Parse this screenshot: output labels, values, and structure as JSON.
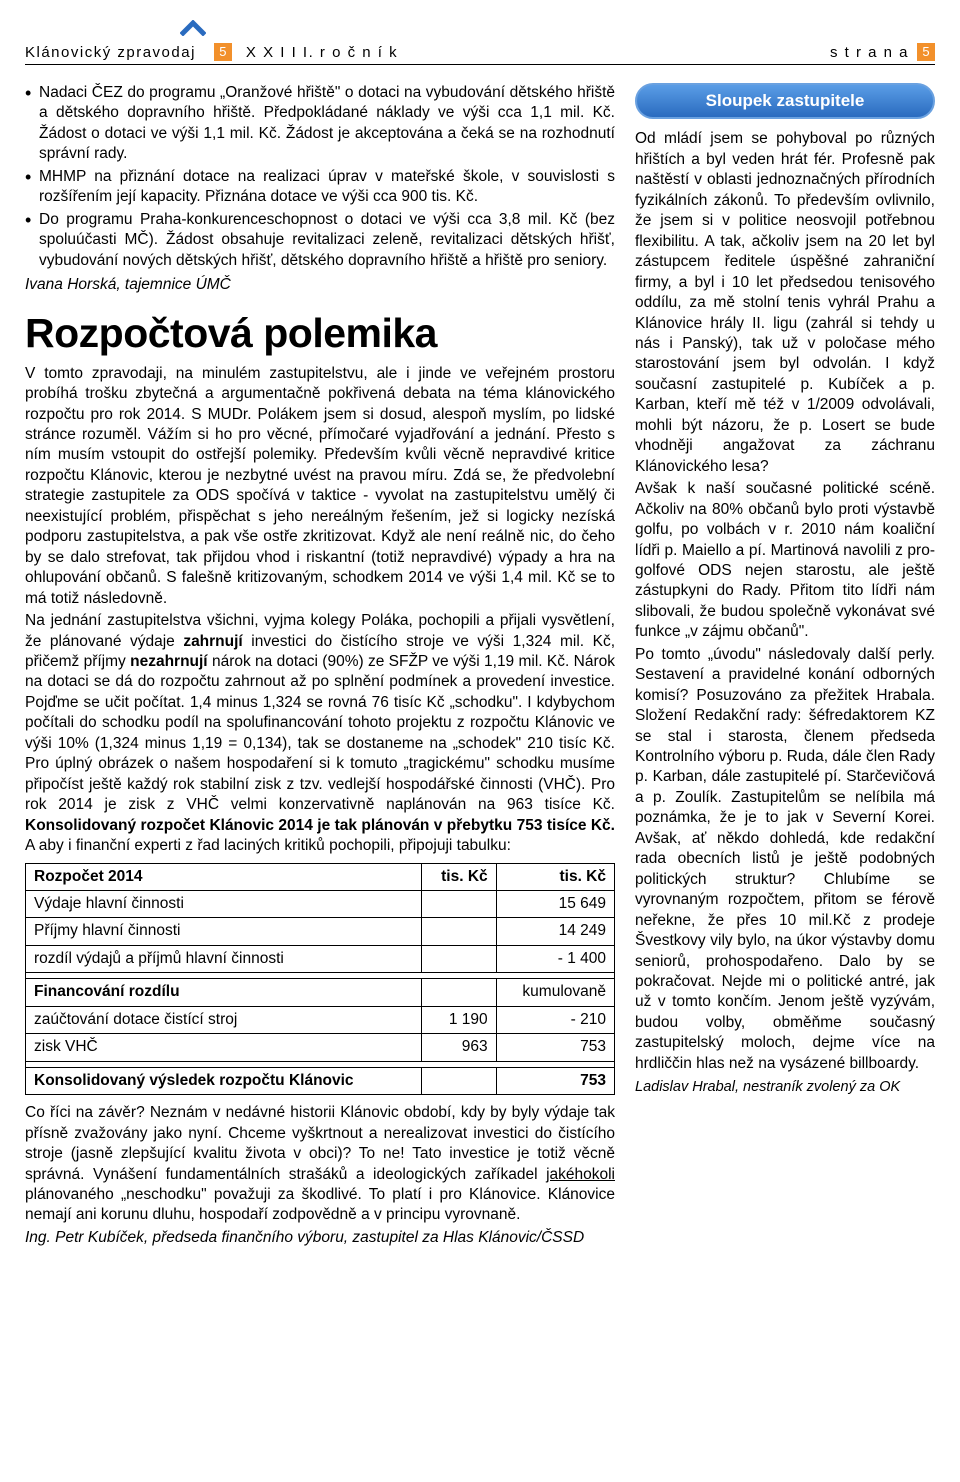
{
  "header": {
    "chevron_color": "#2a6bbf",
    "title": "Klánovický zpravodaj",
    "box_value": "5",
    "box_color": "#f2902b",
    "volume": "X X I I I.  r o č n í k",
    "strana_label": "s t r a n a",
    "page_value": "5",
    "page_box_color": "#f2902b"
  },
  "left": {
    "bullets": [
      "Nadaci ČEZ do programu „Oranžové hřiště\" o dotaci na vybudování dětského hřiště a dětského dopravního hřiště. Předpokládané náklady ve výši cca 1,1 mil. Kč. Žádost o dotaci ve výši 1,1 mil. Kč. Žádost je akceptována a čeká se na rozhodnutí správní rady.",
      "MHMP na přiznání dotace na realizaci úprav v mateřské škole, v souvislosti s rozšířením její kapacity. Přiznána dotace ve výši cca 900 tis. Kč.",
      "Do programu Praha-konkurenceschopnost o dotaci ve výši cca 3,8 mil. Kč (bez spoluúčasti MČ). Žádost obsahuje revitalizaci zeleně, revitalizaci dětských hřišť, vybudování nových dětských hřišť, dětského dopravního hřiště a hřiště pro seniory."
    ],
    "signature1": "Ivana Horská, tajemnice ÚMČ",
    "heading": "Rozpočtová polemika",
    "para1": "V tomto zpravodaji, na minulém zastupitelstvu, ale i jinde ve veřejném prostoru probíhá trošku zbytečná a argumentačně pokřivená debata na téma klánovického rozpočtu pro rok 2014. S MUDr. Polákem jsem si dosud, alespoň myslím, po lidské stránce rozuměl. Vážím si ho pro věcné, přímočaré vyjadřování a jednání. Přesto s ním musím vstoupit do ostřejší polemiky. Především kvůli věcně nepravdivé kritice rozpočtu Klánovic, kterou je nezbytné uvést na pravou míru. Zdá se, že předvolební strategie zastupitele za ODS spočívá v taktice - vyvolat na zastupitelstvu umělý či neexistující problém, přispěchat s jeho nereálným řešením, jež si logicky nezíská podporu zastupitelstva, a pak vše ostře zkritizovat. Když ale není reálně nic, do čeho by se dalo strefovat, tak přijdou vhod i riskantní (totiž nepravdivé) výpady a hra na ohlupování občanů. S falešně kritizovaným, schodkem 2014 ve výši 1,4 mil. Kč se to má totiž následovně.",
    "para2_a": "Na jednání zastupitelstva všichni, vyjma kolegy Poláka, pochopili a přijali vysvětlení, že plánované výdaje ",
    "para2_bold1": "zahrnují",
    "para2_b": " investici do čistícího stroje ve výši 1,324 mil. Kč, přičemž příjmy ",
    "para2_bold2": "nezahrnují",
    "para2_c": " nárok na dotaci (90%) ze SFŽP ve výši 1,19 mil. Kč. Nárok na dotaci se dá do rozpočtu zahrnout až po splnění podmínek a provedení investice. Pojďme se učit počítat. 1,4 minus 1,324 se rovná 76 tisíc Kč „schodku\". I kdybychom počítali do schodku podíl na spolufinancování tohoto projektu z rozpočtu Klánovic ve výši 10% (1,324 minus 1,19 = 0,134), tak se dostaneme na „schodek\" 210 tisíc Kč. Pro úplný obrázek o našem hospodaření si k tomuto „tragickému\" schodku musíme připočíst ještě každý rok stabilní zisk z tzv. vedlejší hospodářské činnosti (VHČ). Pro rok 2014 je zisk z VHČ velmi konzervativně naplánován na 963 tisíce Kč. ",
    "para2_bold3": "Konsolidovaný rozpočet Klánovic 2014 je tak plánován v přebytku 753 tisíce Kč.",
    "para2_d": " A aby i finanční experti z řad laciných kritiků pochopili, připojuji tabulku:",
    "table": {
      "header": [
        "Rozpočet 2014",
        "tis. Kč",
        "tis. Kč"
      ],
      "rows": [
        [
          "Výdaje hlavní činnosti",
          "",
          "15 649"
        ],
        [
          "Příjmy hlavní činnosti",
          "",
          "14 249"
        ],
        [
          "rozdíl výdajů a příjmů hlavní činnosti",
          "",
          "- 1 400"
        ]
      ],
      "rows2_header": [
        "Financování rozdílu",
        "",
        "kumulovaně"
      ],
      "rows2": [
        [
          "zaúčtování dotace čistící stroj",
          "1 190",
          "- 210"
        ],
        [
          "zisk VHČ",
          "963",
          "753"
        ]
      ],
      "rows3_header": [
        "Konsolidovaný výsledek rozpočtu Klánovic",
        "",
        "753"
      ]
    },
    "conclusion_a": "Co říci na závěr? Neznám v nedávné historii Klánovic období, kdy by byly výdaje tak přísně zvažovány jako nyní. Chceme vyškrtnout a nerealizovat investici do čistícího stroje (jasně zlepšující kvalitu života v obci)? To ne! Tato investice je totiž věcně správná. Vynášení fundamentálních strašáků a ideologických zaříkadel ",
    "conclusion_ul": "jakéhokoli",
    "conclusion_b": " plánovaného „neschodku\" považuji za škodlivé. To platí i pro Klánovice. Klánovice nemají ani korunu dluhu, hospodaří zodpovědně a v principu vyrovnaně.",
    "signature2": "Ing. Petr Kubíček, předseda finančního výboru, zastupitel za Hlas Klánovic/ČSSD"
  },
  "right": {
    "badge": "Sloupek zastupitele",
    "badge_border": "#6aa1e0",
    "badge_bg_top": "#5a9de6",
    "badge_bg_bottom": "#2a6bbf",
    "body": "Od mládí jsem se pohyboval po různých hřištích a byl veden hrát fér. Profesně pak naštěstí v oblasti jednoznačných přírodních fyzikálních zákonů. To především ovlivnilo, že jsem si v politice neosvojil potřebnou flexibilitu. A tak, ačkoliv jsem na 20 let byl zástupcem ředitele úspěšné zahraniční firmy, a byl i 10 let předsedou tenisového oddílu, za mě stolní tenis vyhrál Prahu a Klánovice hrály II. ligu (zahrál si tehdy u nás i Panský), tak už v poločase mého starostování jsem byl odvolán. I když současní zastupitelé p. Kubíček a p. Karban, kteří mě též v 1/2009 odvolávali, mohli být názoru, že p. Losert se bude vhodněji angažovat za záchranu Klánovického lesa?\nAvšak k naší současné politické scéně. Ačkoliv na 80% občanů bylo proti výstavbě golfu, po volbách v r. 2010 nám koaliční lídři p. Maiello a pí. Martinová navolili z pro-golfové ODS nejen starostu, ale ještě zástupkyni do Rady. Přitom tito lídři nám slibovali, že budou společně vykonávat své funkce „v zájmu občanů\".\nPo tomto „úvodu\" následovaly další perly. Sestavení a pravidelné konání odborných komisí? Posuzováno za přežitek Hrabala. Složení Redakční rady: šéfredaktorem KZ se stal i starosta, členem předseda Kontrolního výboru p. Ruda, dále člen Rady p. Karban, dále zastupitelé pí. Starčevičová a p. Zoulík. Zastupitelům se nelíbila má poznámka, že je to jak v Severní Korei. Avšak, ať někdo dohledá, kde redakční rada obecních listů je ještě podobných politických struktur? Chlubíme se vyrovnaným rozpočtem, přitom se férově neřekne, že přes 10 mil.Kč z prodeje Švestkovy vily bylo, na úkor výstavby domu seniorů, prohospodařeno. Dalo by se pokračovat. Nejde mi o politické antré, jak už v tomto končím. Jenom ještě vyzývám, budou volby, obměňme současný zastupitelský moloch, dejme více na hrdliččin hlas než na vysázené billboardy.",
    "signature": "Ladislav Hrabal, nestraník zvolený za OK"
  }
}
